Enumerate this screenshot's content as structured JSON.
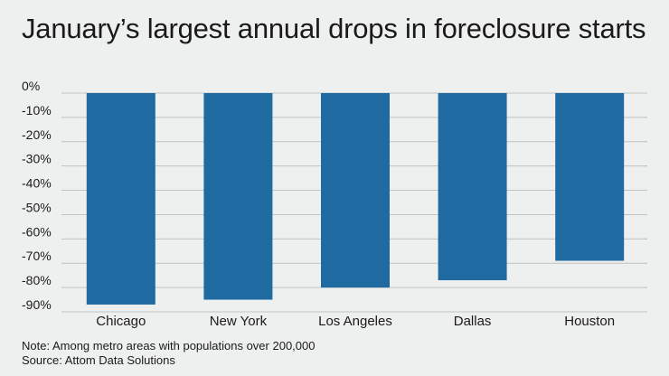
{
  "chart_data": {
    "type": "bar",
    "title": "January’s largest annual drops in foreclosure starts",
    "categories": [
      "Chicago",
      "New York",
      "Los Angeles",
      "Dallas",
      "Houston"
    ],
    "values": [
      -87,
      -85,
      -80,
      -77,
      -69
    ],
    "ylim": [
      -90,
      0
    ],
    "yticks": [
      0,
      -10,
      -20,
      -30,
      -40,
      -50,
      -60,
      -70,
      -80,
      -90
    ],
    "ytick_labels": [
      "0%",
      "-10%",
      "-20%",
      "-30%",
      "-40%",
      "-50%",
      "-60%",
      "-70%",
      "-80%",
      "-90%"
    ],
    "xlabel": "",
    "ylabel": "",
    "grid": true,
    "bar_color": "#1f6aa0",
    "grid_color": "#bfc3c1"
  },
  "notes": {
    "note": "Note: Among metro areas with populations over 200,000",
    "source": "Source: Attom Data Solutions"
  }
}
